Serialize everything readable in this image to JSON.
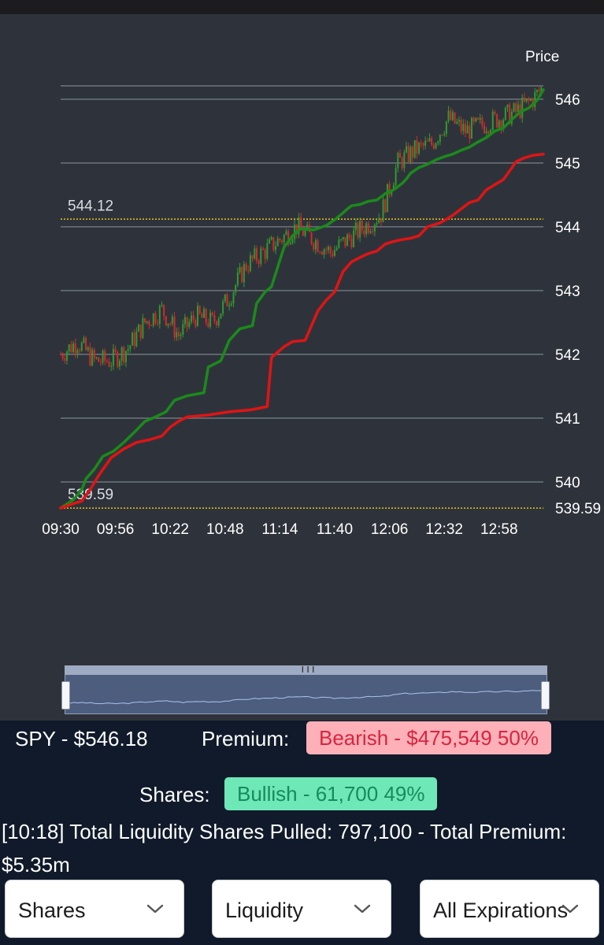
{
  "chart_data": {
    "type": "line",
    "price_axis_label": "Price",
    "y_ticks": [
      540,
      541,
      542,
      543,
      544,
      545,
      546
    ],
    "y_range": [
      539.5,
      546.3
    ],
    "x_ticks": [
      "09:30",
      "09:56",
      "10:22",
      "10:48",
      "11:14",
      "11:40",
      "12:06",
      "12:32",
      "12:58"
    ],
    "x_range_minutes": [
      570,
      799
    ],
    "reference_lines": [
      {
        "value": 544.12,
        "label": "544.12",
        "color": "#e8c21a"
      },
      {
        "value": 539.59,
        "label": "539.59",
        "color": "#e8c21a"
      }
    ],
    "edge_label": "539.59",
    "series": [
      {
        "style": "step-line",
        "color": "#1b8a1b",
        "x_minutes": [
          570,
          576,
          580,
          582,
          586,
          590,
          595,
          600,
          605,
          610,
          615,
          620,
          624,
          630,
          638,
          640,
          646,
          650,
          655,
          661,
          663,
          667,
          670,
          676,
          680,
          684,
          690,
          696,
          700,
          704,
          706,
          708,
          712,
          716,
          720,
          724,
          728,
          732,
          734,
          736,
          740,
          744,
          748,
          752,
          756,
          760,
          764,
          768,
          772,
          776,
          780,
          784,
          788,
          792,
          796,
          799
        ],
        "y": [
          539.59,
          539.72,
          539.88,
          540.05,
          540.2,
          540.4,
          540.48,
          540.62,
          540.78,
          540.95,
          541.02,
          541.1,
          541.28,
          541.35,
          541.4,
          541.8,
          541.9,
          542.22,
          542.4,
          542.45,
          542.8,
          542.98,
          543.06,
          543.68,
          543.86,
          543.97,
          543.95,
          544.02,
          544.11,
          544.22,
          544.28,
          544.33,
          544.35,
          544.4,
          544.42,
          544.52,
          544.58,
          544.68,
          544.75,
          544.84,
          544.93,
          544.98,
          545.05,
          545.1,
          545.14,
          545.2,
          545.25,
          545.33,
          545.4,
          545.5,
          545.55,
          545.68,
          545.8,
          545.86,
          545.98,
          546.15
        ]
      },
      {
        "style": "step-line",
        "color": "#e01414",
        "x_minutes": [
          570,
          576,
          580,
          584,
          588,
          594,
          600,
          606,
          612,
          618,
          622,
          626,
          630,
          640,
          650,
          660,
          668,
          670,
          676,
          680,
          686,
          692,
          696,
          700,
          704,
          708,
          712,
          716,
          720,
          724,
          728,
          732,
          736,
          740,
          744,
          750,
          754,
          756,
          760,
          764,
          768,
          772,
          776,
          780,
          784,
          786,
          790,
          794,
          799
        ],
        "y": [
          539.59,
          539.66,
          539.7,
          539.88,
          540.1,
          540.38,
          540.52,
          540.62,
          540.66,
          540.72,
          540.86,
          540.95,
          541.02,
          541.05,
          541.1,
          541.13,
          541.18,
          541.95,
          542.12,
          542.2,
          542.22,
          542.68,
          542.85,
          542.98,
          543.3,
          543.45,
          543.52,
          543.58,
          543.62,
          543.73,
          543.77,
          543.8,
          543.82,
          543.86,
          544.0,
          544.06,
          544.14,
          544.18,
          544.28,
          544.38,
          544.42,
          544.58,
          544.66,
          544.74,
          544.92,
          545.02,
          545.08,
          545.12,
          545.14
        ]
      },
      {
        "style": "candlestick",
        "up_color": "#2f9a2f",
        "down_color": "#d42a2a",
        "x_minutes": [
          570,
          578,
          586,
          594,
          602,
          610,
          618,
          626,
          634,
          642,
          650,
          658,
          666,
          674,
          682,
          690,
          698,
          706,
          714,
          722,
          730,
          738,
          746,
          754,
          762,
          770,
          778,
          786,
          794,
          799
        ],
        "close": [
          542.0,
          542.2,
          541.9,
          541.9,
          542.1,
          542.5,
          542.7,
          542.3,
          542.6,
          542.5,
          542.9,
          543.4,
          543.6,
          543.8,
          544.0,
          543.8,
          543.6,
          543.8,
          544.0,
          544.2,
          545.0,
          545.2,
          545.3,
          545.7,
          545.5,
          545.6,
          545.7,
          545.8,
          546.0,
          546.2
        ]
      }
    ]
  },
  "summary": {
    "ticker": "SPY - $546.18",
    "premium_label": "Premium:",
    "premium_badge": "Bearish - $475,549 50%",
    "shares_label": "Shares:",
    "shares_badge": "Bullish - 61,700 49%",
    "liquidity_text": "[10:18] Total Liquidity Shares Pulled: 797,100 - Total Premium: $5.35m"
  },
  "filters": {
    "shares": "Shares",
    "liquidity": "Liquidity",
    "expirations": "All Expirations"
  },
  "colors": {
    "bullish_line": "#1b8a1b",
    "bearish_line": "#e01414",
    "reference_line": "#e8c21a",
    "chart_background": "#2e333b",
    "bearish_badge": "#fdb0b8",
    "bullish_badge": "#6ee8b6"
  }
}
